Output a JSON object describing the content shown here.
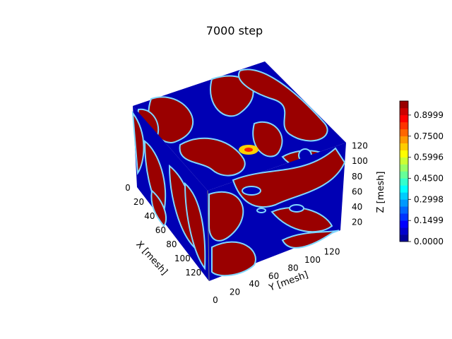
{
  "chart_data": {
    "type": "heatmap",
    "title": "7000 step",
    "xlabel": "X [mesh]",
    "ylabel": "Y [mesh]",
    "zlabel": "Z [mesh]",
    "x_ticks": [
      "0",
      "20",
      "40",
      "60",
      "80",
      "100",
      "120"
    ],
    "y_ticks": [
      "0",
      "20",
      "40",
      "60",
      "80",
      "100",
      "120"
    ],
    "z_ticks": [
      "20",
      "40",
      "60",
      "80",
      "100",
      "120"
    ],
    "x_range": [
      0,
      128
    ],
    "y_range": [
      0,
      128
    ],
    "z_range": [
      0,
      128
    ],
    "colorbar": {
      "ticks": [
        "0.0000",
        "0.1499",
        "0.2998",
        "0.4500",
        "0.5996",
        "0.7500",
        "0.8999"
      ],
      "range": [
        0.0,
        1.0
      ],
      "colormap": "jet"
    },
    "faces": [
      "top",
      "left",
      "right"
    ]
  }
}
